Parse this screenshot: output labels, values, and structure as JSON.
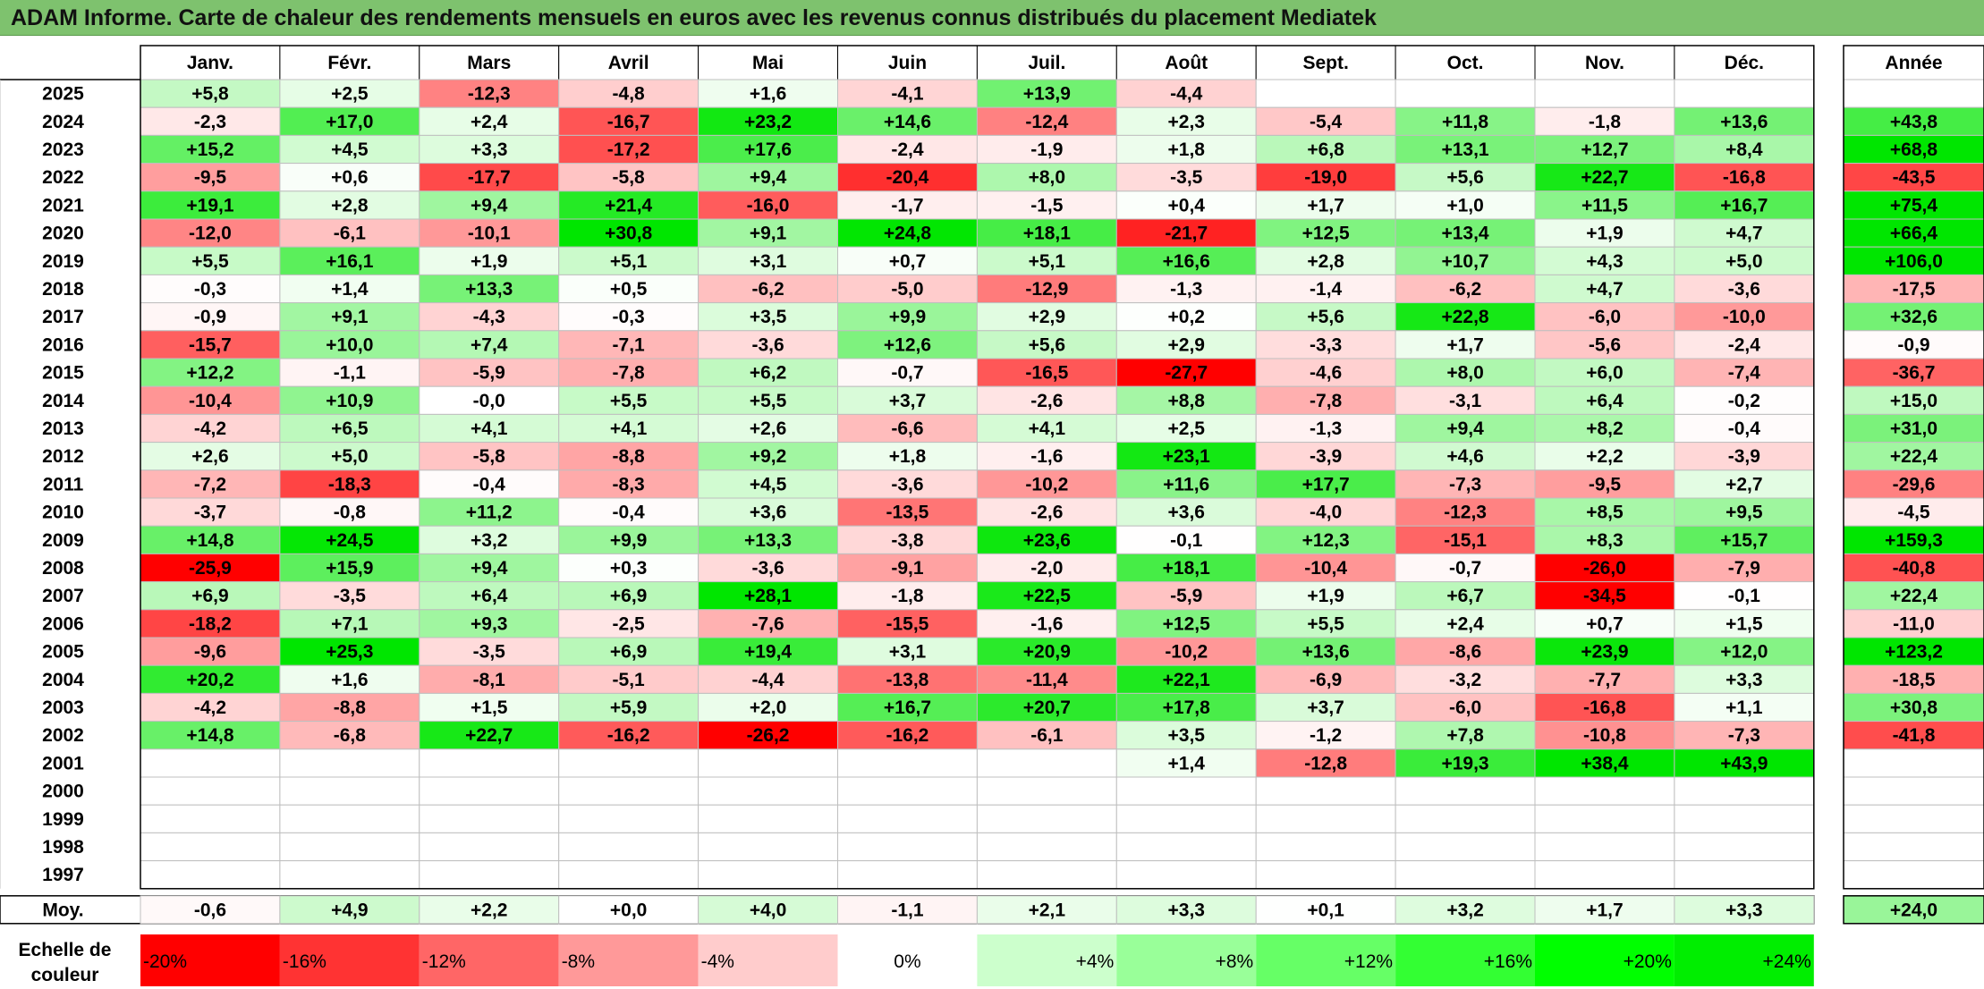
{
  "title": "ADAM Informe. Carte de chaleur des rendements mensuels en euros avec les revenus connus distribués du placement Mediatek",
  "chart_data": {
    "type": "heatmap",
    "months": [
      "Janv.",
      "Févr.",
      "Mars",
      "Avril",
      "Mai",
      "Juin",
      "Juil.",
      "Août",
      "Sept.",
      "Oct.",
      "Nov.",
      "Déc."
    ],
    "year_header": "Année",
    "rows": [
      {
        "year": "2025",
        "values": [
          "+5,8",
          "+2,5",
          "-12,3",
          "-4,8",
          "+1,6",
          "-4,1",
          "+13,9",
          "-4,4",
          "",
          "",
          "",
          ""
        ],
        "annual": ""
      },
      {
        "year": "2024",
        "values": [
          "-2,3",
          "+17,0",
          "+2,4",
          "-16,7",
          "+23,2",
          "+14,6",
          "-12,4",
          "+2,3",
          "-5,4",
          "+11,8",
          "-1,8",
          "+13,6"
        ],
        "annual": "+43,8"
      },
      {
        "year": "2023",
        "values": [
          "+15,2",
          "+4,5",
          "+3,3",
          "-17,2",
          "+17,6",
          "-2,4",
          "-1,9",
          "+1,8",
          "+6,8",
          "+13,1",
          "+12,7",
          "+8,4"
        ],
        "annual": "+68,8"
      },
      {
        "year": "2022",
        "values": [
          "-9,5",
          "+0,6",
          "-17,7",
          "-5,8",
          "+9,4",
          "-20,4",
          "+8,0",
          "-3,5",
          "-19,0",
          "+5,6",
          "+22,7",
          "-16,8"
        ],
        "annual": "-43,5"
      },
      {
        "year": "2021",
        "values": [
          "+19,1",
          "+2,8",
          "+9,4",
          "+21,4",
          "-16,0",
          "-1,7",
          "-1,5",
          "+0,4",
          "+1,7",
          "+1,0",
          "+11,5",
          "+16,7"
        ],
        "annual": "+75,4"
      },
      {
        "year": "2020",
        "values": [
          "-12,0",
          "-6,1",
          "-10,1",
          "+30,8",
          "+9,1",
          "+24,8",
          "+18,1",
          "-21,7",
          "+12,5",
          "+13,4",
          "+1,9",
          "+4,7"
        ],
        "annual": "+66,4"
      },
      {
        "year": "2019",
        "values": [
          "+5,5",
          "+16,1",
          "+1,9",
          "+5,1",
          "+3,1",
          "+0,7",
          "+5,1",
          "+16,6",
          "+2,8",
          "+10,7",
          "+4,3",
          "+5,0"
        ],
        "annual": "+106,0"
      },
      {
        "year": "2018",
        "values": [
          "-0,3",
          "+1,4",
          "+13,3",
          "+0,5",
          "-6,2",
          "-5,0",
          "-12,9",
          "-1,3",
          "-1,4",
          "-6,2",
          "+4,7",
          "-3,6"
        ],
        "annual": "-17,5"
      },
      {
        "year": "2017",
        "values": [
          "-0,9",
          "+9,1",
          "-4,3",
          "-0,3",
          "+3,5",
          "+9,9",
          "+2,9",
          "+0,2",
          "+5,6",
          "+22,8",
          "-6,0",
          "-10,0"
        ],
        "annual": "+32,6"
      },
      {
        "year": "2016",
        "values": [
          "-15,7",
          "+10,0",
          "+7,4",
          "-7,1",
          "-3,6",
          "+12,6",
          "+5,6",
          "+2,9",
          "-3,3",
          "+1,7",
          "-5,6",
          "-2,4"
        ],
        "annual": "-0,9"
      },
      {
        "year": "2015",
        "values": [
          "+12,2",
          "-1,1",
          "-5,9",
          "-7,8",
          "+6,2",
          "-0,7",
          "-16,5",
          "-27,7",
          "-4,6",
          "+8,0",
          "+6,0",
          "-7,4"
        ],
        "annual": "-36,7"
      },
      {
        "year": "2014",
        "values": [
          "-10,4",
          "+10,9",
          "-0,0",
          "+5,5",
          "+5,5",
          "+3,7",
          "-2,6",
          "+8,8",
          "-7,8",
          "-3,1",
          "+6,4",
          "-0,2"
        ],
        "annual": "+15,0"
      },
      {
        "year": "2013",
        "values": [
          "-4,2",
          "+6,5",
          "+4,1",
          "+4,1",
          "+2,6",
          "-6,6",
          "+4,1",
          "+2,5",
          "-1,3",
          "+9,4",
          "+8,2",
          "-0,4"
        ],
        "annual": "+31,0"
      },
      {
        "year": "2012",
        "values": [
          "+2,6",
          "+5,0",
          "-5,8",
          "-8,8",
          "+9,2",
          "+1,8",
          "-1,6",
          "+23,1",
          "-3,9",
          "+4,6",
          "+2,2",
          "-3,9"
        ],
        "annual": "+22,4"
      },
      {
        "year": "2011",
        "values": [
          "-7,2",
          "-18,3",
          "-0,4",
          "-8,3",
          "+4,5",
          "-3,6",
          "-10,2",
          "+11,6",
          "+17,7",
          "-7,3",
          "-9,5",
          "+2,7"
        ],
        "annual": "-29,6"
      },
      {
        "year": "2010",
        "values": [
          "-3,7",
          "-0,8",
          "+11,2",
          "-0,4",
          "+3,6",
          "-13,5",
          "-2,6",
          "+3,6",
          "-4,0",
          "-12,3",
          "+8,5",
          "+9,5"
        ],
        "annual": "-4,5"
      },
      {
        "year": "2009",
        "values": [
          "+14,8",
          "+24,5",
          "+3,2",
          "+9,9",
          "+13,3",
          "-3,8",
          "+23,6",
          "-0,1",
          "+12,3",
          "-15,1",
          "+8,3",
          "+15,7"
        ],
        "annual": "+159,3"
      },
      {
        "year": "2008",
        "values": [
          "-25,9",
          "+15,9",
          "+9,4",
          "+0,3",
          "-3,6",
          "-9,1",
          "-2,0",
          "+18,1",
          "-10,4",
          "-0,7",
          "-26,0",
          "-7,9"
        ],
        "annual": "-40,8"
      },
      {
        "year": "2007",
        "values": [
          "+6,9",
          "-3,5",
          "+6,4",
          "+6,9",
          "+28,1",
          "-1,8",
          "+22,5",
          "-5,9",
          "+1,9",
          "+6,7",
          "-34,5",
          "-0,1"
        ],
        "annual": "+22,4"
      },
      {
        "year": "2006",
        "values": [
          "-18,2",
          "+7,1",
          "+9,3",
          "-2,5",
          "-7,6",
          "-15,5",
          "-1,6",
          "+12,5",
          "+5,5",
          "+2,4",
          "+0,7",
          "+1,5"
        ],
        "annual": "-11,0"
      },
      {
        "year": "2005",
        "values": [
          "-9,6",
          "+25,3",
          "-3,5",
          "+6,9",
          "+19,4",
          "+3,1",
          "+20,9",
          "-10,2",
          "+13,6",
          "-8,6",
          "+23,9",
          "+12,0"
        ],
        "annual": "+123,2"
      },
      {
        "year": "2004",
        "values": [
          "+20,2",
          "+1,6",
          "-8,1",
          "-5,1",
          "-4,4",
          "-13,8",
          "-11,4",
          "+22,1",
          "-6,9",
          "-3,2",
          "-7,7",
          "+3,3"
        ],
        "annual": "-18,5"
      },
      {
        "year": "2003",
        "values": [
          "-4,2",
          "-8,8",
          "+1,5",
          "+5,9",
          "+2,0",
          "+16,7",
          "+20,7",
          "+17,8",
          "+3,7",
          "-6,0",
          "-16,8",
          "+1,1"
        ],
        "annual": "+30,8"
      },
      {
        "year": "2002",
        "values": [
          "+14,8",
          "-6,8",
          "+22,7",
          "-16,2",
          "-26,2",
          "-16,2",
          "-6,1",
          "+3,5",
          "-1,2",
          "+7,8",
          "-10,8",
          "-7,3"
        ],
        "annual": "-41,8"
      },
      {
        "year": "2001",
        "values": [
          "",
          "",
          "",
          "",
          "",
          "",
          "",
          "+1,4",
          "-12,8",
          "+19,3",
          "+38,4",
          "+43,9"
        ],
        "annual": ""
      },
      {
        "year": "2000",
        "values": [
          "",
          "",
          "",
          "",
          "",
          "",
          "",
          "",
          "",
          "",
          "",
          ""
        ],
        "annual": ""
      },
      {
        "year": "1999",
        "values": [
          "",
          "",
          "",
          "",
          "",
          "",
          "",
          "",
          "",
          "",
          "",
          ""
        ],
        "annual": ""
      },
      {
        "year": "1998",
        "values": [
          "",
          "",
          "",
          "",
          "",
          "",
          "",
          "",
          "",
          "",
          "",
          ""
        ],
        "annual": ""
      },
      {
        "year": "1997",
        "values": [
          "",
          "",
          "",
          "",
          "",
          "",
          "",
          "",
          "",
          "",
          "",
          ""
        ],
        "annual": ""
      }
    ],
    "average": {
      "label": "Moy.",
      "values": [
        "-0,6",
        "+4,9",
        "+2,2",
        "+0,0",
        "+4,0",
        "-1,1",
        "+2,1",
        "+3,3",
        "+0,1",
        "+3,2",
        "+1,7",
        "+3,3"
      ],
      "annual": "+24,0"
    },
    "color_scale": {
      "label_line1": "Echelle de",
      "label_line2": "couleur",
      "steps": [
        {
          "label": "-20%",
          "color": "#ff0000"
        },
        {
          "label": "-16%",
          "color": "#ff3333"
        },
        {
          "label": "-12%",
          "color": "#ff6666"
        },
        {
          "label": "-8%",
          "color": "#ff9999"
        },
        {
          "label": "-4%",
          "color": "#ffcccc"
        },
        {
          "label": "0%",
          "color": "#ffffff"
        },
        {
          "label": "+4%",
          "color": "#ccffcc"
        },
        {
          "label": "+8%",
          "color": "#99ff99"
        },
        {
          "label": "+12%",
          "color": "#66ff66"
        },
        {
          "label": "+16%",
          "color": "#33ff33"
        },
        {
          "label": "+20%",
          "color": "#00ff00"
        },
        {
          "label": "+24%",
          "color": "#00ee00"
        }
      ]
    },
    "colors": {
      "positive_max": "#00e600",
      "negative_max": "#ff0000",
      "neutral": "#ffffff",
      "grid": "#bfbfbf",
      "title_bar": "#7ec26e"
    }
  }
}
